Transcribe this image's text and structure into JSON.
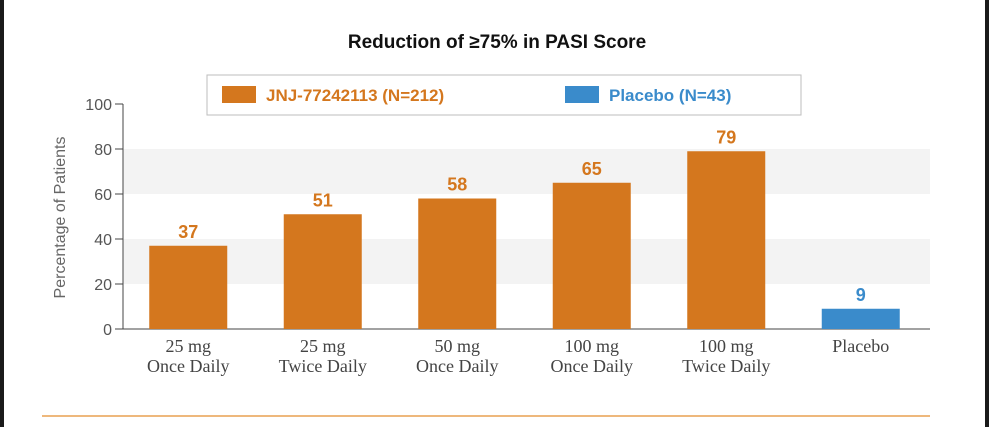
{
  "chart_data": {
    "type": "bar",
    "title": "Reduction of ≥75% in PASI Score",
    "ylabel": "Percentage of Patients",
    "xlabel": "",
    "ylim": [
      0,
      100
    ],
    "yticks": [
      0,
      20,
      40,
      60,
      80,
      100
    ],
    "grid": "alternating-bands",
    "legend_position": "top",
    "categories": [
      [
        "25 mg",
        "Once Daily"
      ],
      [
        "25 mg",
        "Twice Daily"
      ],
      [
        "50 mg",
        "Once Daily"
      ],
      [
        "100 mg",
        "Once Daily"
      ],
      [
        "100 mg",
        "Twice Daily"
      ],
      [
        "Placebo"
      ]
    ],
    "series": [
      {
        "name": "JNJ-77242113 (N=212)",
        "color": "#D4771E",
        "values": [
          37,
          51,
          58,
          65,
          79,
          null
        ]
      },
      {
        "name": "Placebo (N=43)",
        "color": "#3A8BCB",
        "values": [
          null,
          null,
          null,
          null,
          null,
          9
        ]
      }
    ]
  }
}
